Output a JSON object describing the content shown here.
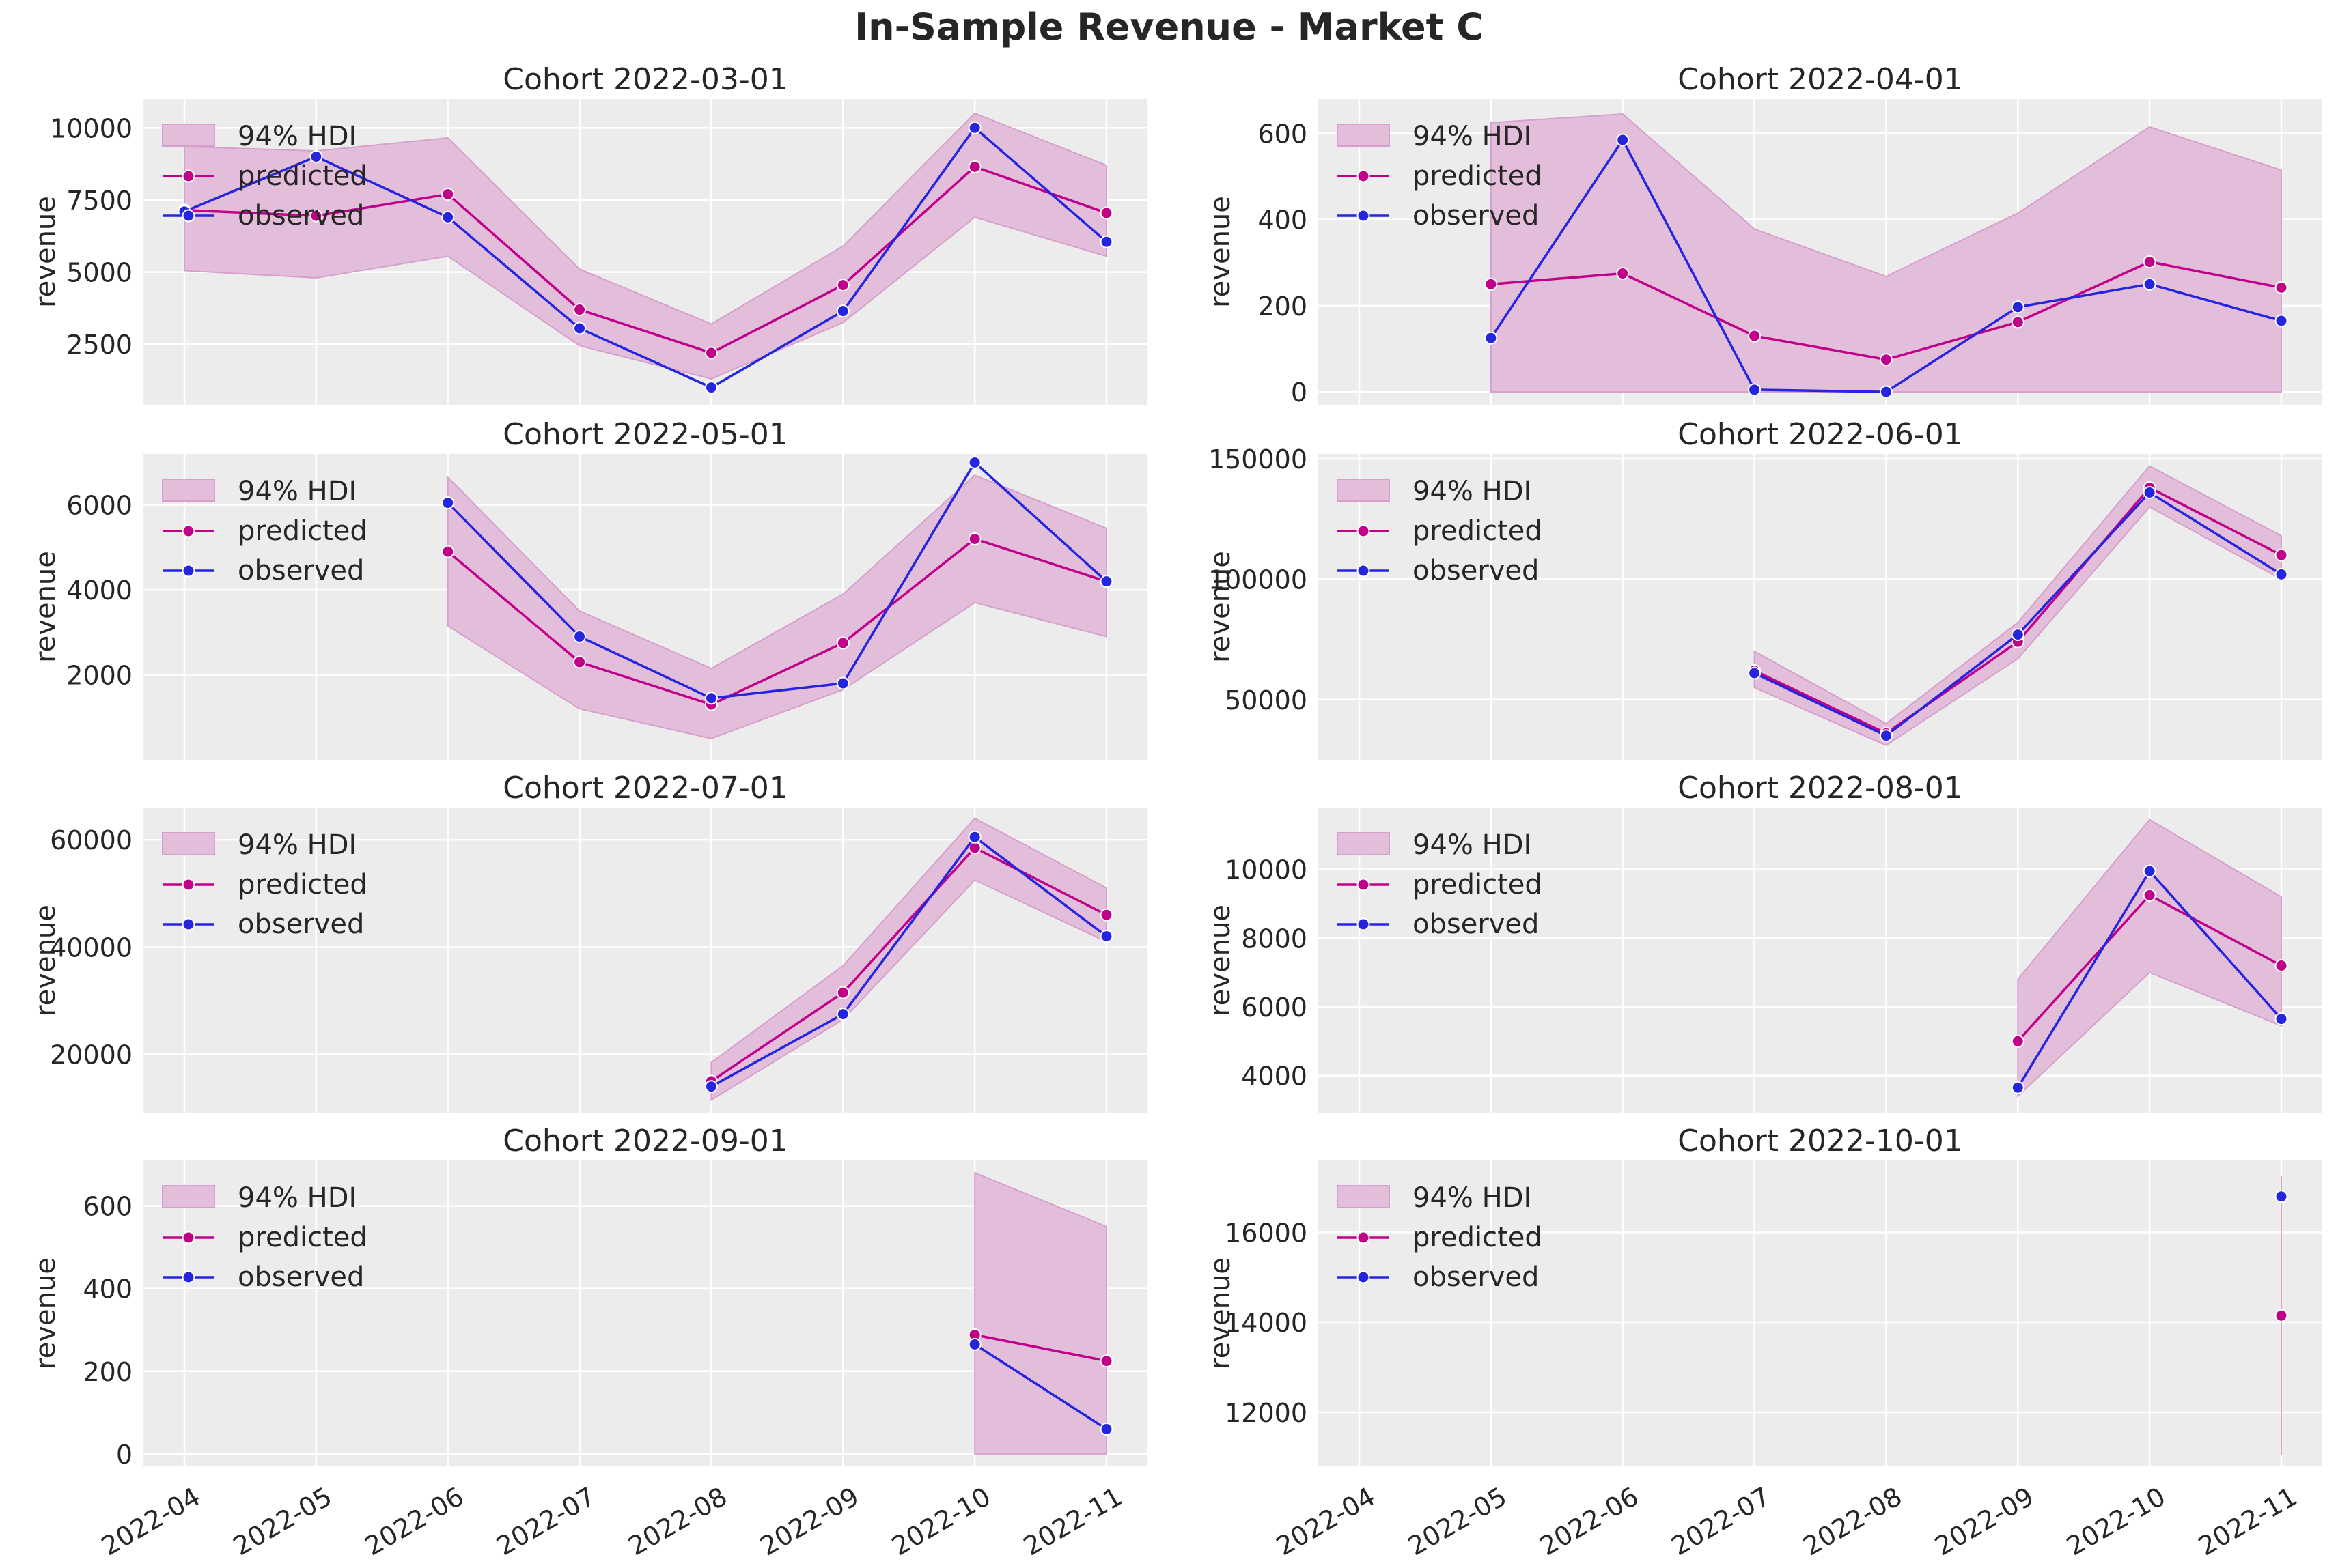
{
  "figure": {
    "title": "In-Sample Revenue - Market C"
  },
  "legend": {
    "hdi": "94% HDI",
    "predicted": "predicted",
    "observed": "observed"
  },
  "colors": {
    "predicted": "#c1008a",
    "observed": "#2525e0",
    "hdi_fill": "#e3bedb",
    "hdi_edge": "#d79fcb",
    "axes_bg": "#ececec",
    "grid": "#ffffff"
  },
  "x_ticks": [
    "2022-04",
    "2022-05",
    "2022-06",
    "2022-07",
    "2022-08",
    "2022-09",
    "2022-10",
    "2022-11"
  ],
  "chart_data": [
    {
      "type": "line",
      "title": "Cohort 2022-03-01",
      "ylabel": "revenue",
      "ylim": [
        400,
        11000
      ],
      "yticks": [
        2500,
        5000,
        7500,
        10000
      ],
      "x": [
        "2022-04",
        "2022-05",
        "2022-06",
        "2022-07",
        "2022-08",
        "2022-09",
        "2022-10",
        "2022-11"
      ],
      "series": [
        {
          "name": "predicted",
          "values": [
            7150,
            6950,
            7700,
            3700,
            2200,
            4550,
            8650,
            7050
          ]
        },
        {
          "name": "observed",
          "values": [
            7100,
            9000,
            6900,
            3050,
            1000,
            3650,
            10000,
            6050
          ]
        }
      ],
      "hdi_lower": [
        5050,
        4800,
        5550,
        2450,
        1300,
        3250,
        6900,
        5550
      ],
      "hdi_upper": [
        9350,
        9200,
        9650,
        5100,
        3200,
        5900,
        10500,
        8700
      ]
    },
    {
      "type": "line",
      "title": "Cohort 2022-04-01",
      "ylabel": "revenue",
      "ylim": [
        -30,
        680
      ],
      "yticks": [
        0,
        200,
        400,
        600
      ],
      "x": [
        "2022-05",
        "2022-06",
        "2022-07",
        "2022-08",
        "2022-09",
        "2022-10",
        "2022-11"
      ],
      "series": [
        {
          "name": "predicted",
          "values": [
            250,
            275,
            130,
            75,
            162,
            302,
            242
          ]
        },
        {
          "name": "observed",
          "values": [
            125,
            585,
            5,
            0,
            197,
            250,
            165
          ]
        }
      ],
      "hdi_lower": [
        0,
        0,
        0,
        0,
        0,
        0,
        0
      ],
      "hdi_upper": [
        625,
        645,
        378,
        268,
        415,
        615,
        515
      ]
    },
    {
      "type": "line",
      "title": "Cohort 2022-05-01",
      "ylabel": "revenue",
      "ylim": [
        0,
        7200
      ],
      "yticks": [
        2000,
        4000,
        6000
      ],
      "x": [
        "2022-06",
        "2022-07",
        "2022-08",
        "2022-09",
        "2022-10",
        "2022-11"
      ],
      "series": [
        {
          "name": "predicted",
          "values": [
            4900,
            2300,
            1300,
            2750,
            5200,
            4200
          ]
        },
        {
          "name": "observed",
          "values": [
            6050,
            2900,
            1450,
            1800,
            7000,
            4200
          ]
        }
      ],
      "hdi_lower": [
        3150,
        1200,
        500,
        1650,
        3700,
        2900
      ],
      "hdi_upper": [
        6650,
        3500,
        2150,
        3900,
        6700,
        5450
      ]
    },
    {
      "type": "line",
      "title": "Cohort 2022-06-01",
      "ylabel": "revenue",
      "ylim": [
        25000,
        152000
      ],
      "yticks": [
        50000,
        100000,
        150000
      ],
      "x": [
        "2022-07",
        "2022-08",
        "2022-09",
        "2022-10",
        "2022-11"
      ],
      "series": [
        {
          "name": "predicted",
          "values": [
            62000,
            36000,
            74000,
            138000,
            110000
          ]
        },
        {
          "name": "observed",
          "values": [
            61000,
            35000,
            77000,
            136000,
            102000
          ]
        }
      ],
      "hdi_lower": [
        55000,
        31000,
        67000,
        130000,
        100000
      ],
      "hdi_upper": [
        70000,
        40000,
        82000,
        147000,
        118000
      ]
    },
    {
      "type": "line",
      "title": "Cohort 2022-07-01",
      "ylabel": "revenue",
      "ylim": [
        9000,
        66000
      ],
      "yticks": [
        20000,
        40000,
        60000
      ],
      "x": [
        "2022-08",
        "2022-09",
        "2022-10",
        "2022-11"
      ],
      "series": [
        {
          "name": "predicted",
          "values": [
            15000,
            31500,
            58500,
            46000
          ]
        },
        {
          "name": "observed",
          "values": [
            14000,
            27500,
            60500,
            42000
          ]
        }
      ],
      "hdi_lower": [
        11500,
        26500,
        52500,
        41000
      ],
      "hdi_upper": [
        18500,
        36500,
        64000,
        51000
      ]
    },
    {
      "type": "line",
      "title": "Cohort 2022-08-01",
      "ylabel": "revenue",
      "ylim": [
        2900,
        11800
      ],
      "yticks": [
        4000,
        6000,
        8000,
        10000
      ],
      "x": [
        "2022-09",
        "2022-10",
        "2022-11"
      ],
      "series": [
        {
          "name": "predicted",
          "values": [
            5000,
            9250,
            7200
          ]
        },
        {
          "name": "observed",
          "values": [
            3650,
            9950,
            5650
          ]
        }
      ],
      "hdi_lower": [
        3400,
        7000,
        5450
      ],
      "hdi_upper": [
        6800,
        11450,
        9200
      ]
    },
    {
      "type": "line",
      "title": "Cohort 2022-09-01",
      "ylabel": "revenue",
      "ylim": [
        -30,
        710
      ],
      "yticks": [
        0,
        200,
        400,
        600
      ],
      "x": [
        "2022-10",
        "2022-11"
      ],
      "series": [
        {
          "name": "predicted",
          "values": [
            288,
            225
          ]
        },
        {
          "name": "observed",
          "values": [
            265,
            60
          ]
        }
      ],
      "hdi_lower": [
        0,
        0
      ],
      "hdi_upper": [
        680,
        550
      ]
    },
    {
      "type": "line",
      "title": "Cohort 2022-10-01",
      "ylabel": "revenue",
      "ylim": [
        10800,
        17600
      ],
      "yticks": [
        12000,
        14000,
        16000
      ],
      "x": [
        "2022-11"
      ],
      "series": [
        {
          "name": "predicted",
          "values": [
            14150
          ]
        },
        {
          "name": "observed",
          "values": [
            16800
          ]
        }
      ],
      "hdi_lower": [
        11050
      ],
      "hdi_upper": [
        17250
      ]
    }
  ]
}
